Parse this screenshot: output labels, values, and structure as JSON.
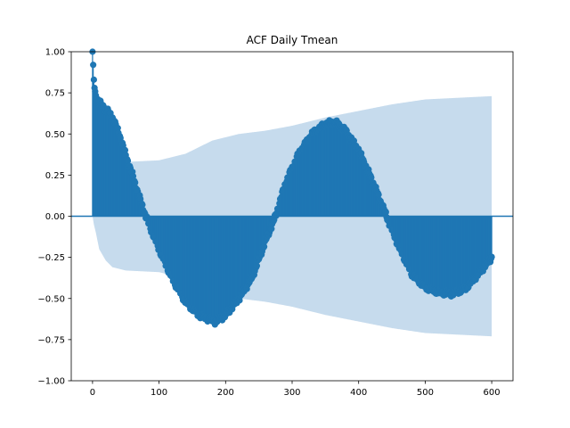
{
  "chart_data": {
    "type": "stem",
    "title": "ACF Daily Tmean",
    "xlabel": "",
    "ylabel": "",
    "xlim": [
      -32,
      632
    ],
    "ylim": [
      -1.0,
      1.0
    ],
    "xticks": [
      0,
      100,
      200,
      300,
      400,
      500,
      600
    ],
    "xtick_labels": [
      "0",
      "100",
      "200",
      "300",
      "400",
      "500",
      "600"
    ],
    "yticks": [
      -1.0,
      -0.75,
      -0.5,
      -0.25,
      0.0,
      0.25,
      0.5,
      0.75,
      1.0
    ],
    "ytick_labels": [
      "−1.00",
      "−0.75",
      "−0.50",
      "−0.25",
      "0.00",
      "0.25",
      "0.50",
      "0.75",
      "1.00"
    ],
    "grid": false,
    "legend": "none",
    "colors": {
      "stem": "#1f77b4",
      "band": "#c6dbed",
      "zero_line": "#1f77b4"
    },
    "acf_keypoints": [
      {
        "lag": 0,
        "acf": 1.0
      },
      {
        "lag": 1,
        "acf": 0.92
      },
      {
        "lag": 2,
        "acf": 0.83
      },
      {
        "lag": 3,
        "acf": 0.78
      },
      {
        "lag": 5,
        "acf": 0.73
      },
      {
        "lag": 10,
        "acf": 0.69
      },
      {
        "lag": 20,
        "acf": 0.65
      },
      {
        "lag": 30,
        "acf": 0.6
      },
      {
        "lag": 40,
        "acf": 0.5
      },
      {
        "lag": 50,
        "acf": 0.37
      },
      {
        "lag": 60,
        "acf": 0.25
      },
      {
        "lag": 70,
        "acf": 0.12
      },
      {
        "lag": 80,
        "acf": 0.0
      },
      {
        "lag": 90,
        "acf": -0.1
      },
      {
        "lag": 100,
        "acf": -0.2
      },
      {
        "lag": 120,
        "acf": -0.38
      },
      {
        "lag": 140,
        "acf": -0.52
      },
      {
        "lag": 160,
        "acf": -0.6
      },
      {
        "lag": 185,
        "acf": -0.64
      },
      {
        "lag": 200,
        "acf": -0.6
      },
      {
        "lag": 220,
        "acf": -0.5
      },
      {
        "lag": 240,
        "acf": -0.37
      },
      {
        "lag": 260,
        "acf": -0.15
      },
      {
        "lag": 275,
        "acf": 0.0
      },
      {
        "lag": 290,
        "acf": 0.2
      },
      {
        "lag": 310,
        "acf": 0.38
      },
      {
        "lag": 330,
        "acf": 0.5
      },
      {
        "lag": 350,
        "acf": 0.56
      },
      {
        "lag": 365,
        "acf": 0.57
      },
      {
        "lag": 380,
        "acf": 0.52
      },
      {
        "lag": 400,
        "acf": 0.4
      },
      {
        "lag": 420,
        "acf": 0.22
      },
      {
        "lag": 440,
        "acf": 0.02
      },
      {
        "lag": 460,
        "acf": -0.18
      },
      {
        "lag": 480,
        "acf": -0.35
      },
      {
        "lag": 500,
        "acf": -0.43
      },
      {
        "lag": 520,
        "acf": -0.46
      },
      {
        "lag": 540,
        "acf": -0.47
      },
      {
        "lag": 560,
        "acf": -0.44
      },
      {
        "lag": 580,
        "acf": -0.35
      },
      {
        "lag": 600,
        "acf": -0.25
      }
    ],
    "confidence_band_keypoints": [
      {
        "lag": 0,
        "half_width": 0.0
      },
      {
        "lag": 2,
        "half_width": 0.05
      },
      {
        "lag": 5,
        "half_width": 0.1
      },
      {
        "lag": 10,
        "half_width": 0.2
      },
      {
        "lag": 20,
        "half_width": 0.27
      },
      {
        "lag": 30,
        "half_width": 0.31
      },
      {
        "lag": 50,
        "half_width": 0.33
      },
      {
        "lag": 100,
        "half_width": 0.34
      },
      {
        "lag": 140,
        "half_width": 0.38
      },
      {
        "lag": 180,
        "half_width": 0.46
      },
      {
        "lag": 220,
        "half_width": 0.5
      },
      {
        "lag": 260,
        "half_width": 0.52
      },
      {
        "lag": 300,
        "half_width": 0.55
      },
      {
        "lag": 350,
        "half_width": 0.6
      },
      {
        "lag": 400,
        "half_width": 0.64
      },
      {
        "lag": 450,
        "half_width": 0.68
      },
      {
        "lag": 500,
        "half_width": 0.71
      },
      {
        "lag": 550,
        "half_width": 0.72
      },
      {
        "lag": 600,
        "half_width": 0.73
      }
    ],
    "max_lag": 600
  }
}
